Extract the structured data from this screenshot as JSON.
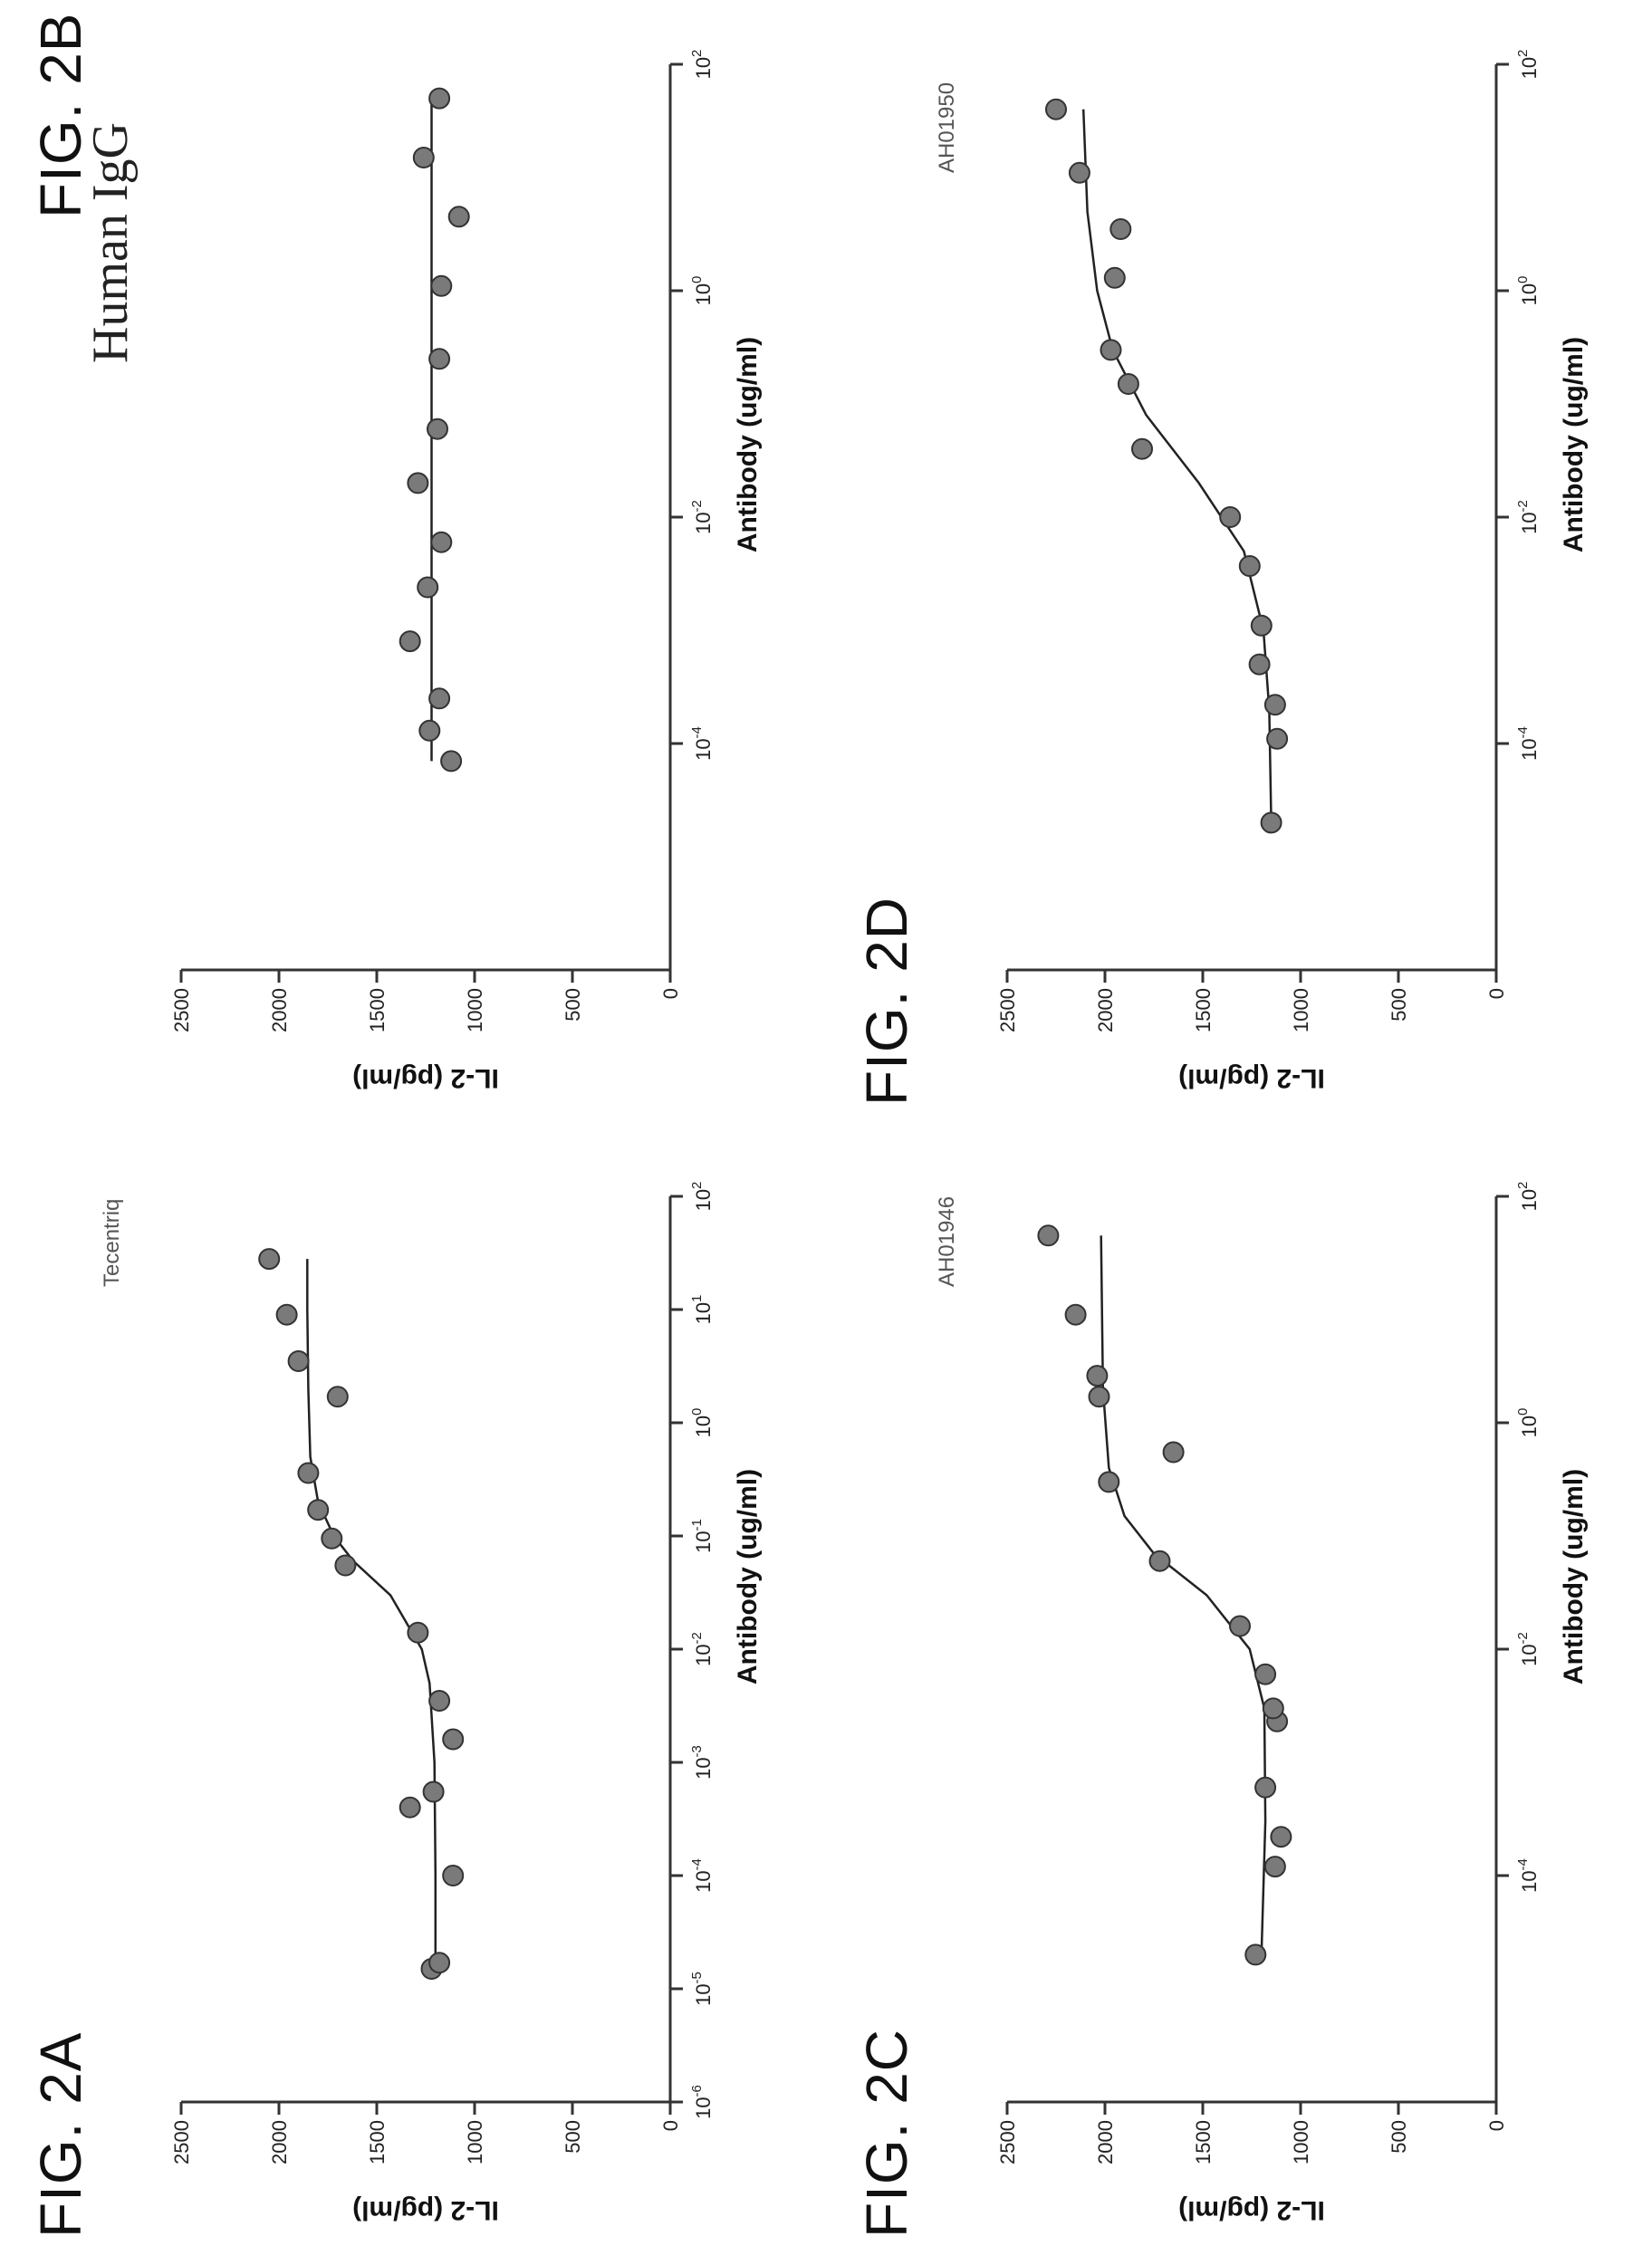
{
  "figures": [
    {
      "label": "FIG. 2A",
      "title": "Tecentriq",
      "title_style": "small"
    },
    {
      "label": "FIG. 2B",
      "title": "Human IgG",
      "title_style": "serif"
    },
    {
      "label": "FIG. 2C",
      "title": "AH01946",
      "title_style": "small"
    },
    {
      "label": "FIG. 2D",
      "title": "AH01950",
      "title_style": "small"
    }
  ],
  "chart_data": [
    {
      "type": "scatter",
      "title": "Tecentriq",
      "xlabel": "Antibody (ug/ml)",
      "ylabel": "IL-2 (pg/ml)",
      "x_scale": "log",
      "xlim": [
        1e-06,
        100
      ],
      "ylim": [
        0,
        2500
      ],
      "x_ticks": [
        1e-06,
        1e-05,
        0.0001,
        0.001,
        0.01,
        0.1,
        1,
        10,
        100
      ],
      "x_tick_labels": [
        "10-6",
        "10-5",
        "10-4",
        "10-3",
        "10-2",
        "10-1",
        "100",
        "101",
        "102"
      ],
      "y_ticks": [
        0,
        500,
        1000,
        1500,
        2000,
        2500
      ],
      "y_tick_labels": [
        "0",
        "500",
        "1000",
        "1500",
        "2000",
        "2500"
      ],
      "series": [
        {
          "points": [
            {
              "x": 1.5e-05,
              "y": 1220
            },
            {
              "x": 1.7e-05,
              "y": 1180
            },
            {
              "x": 0.0001,
              "y": 1110
            },
            {
              "x": 0.0004,
              "y": 1330
            },
            {
              "x": 0.00055,
              "y": 1210
            },
            {
              "x": 0.0016,
              "y": 1110
            },
            {
              "x": 0.0035,
              "y": 1180
            },
            {
              "x": 0.014,
              "y": 1290
            },
            {
              "x": 0.055,
              "y": 1660
            },
            {
              "x": 0.095,
              "y": 1730
            },
            {
              "x": 0.17,
              "y": 1800
            },
            {
              "x": 0.36,
              "y": 1850
            },
            {
              "x": 1.7,
              "y": 1700
            },
            {
              "x": 3.5,
              "y": 1900
            },
            {
              "x": 9,
              "y": 1960
            },
            {
              "x": 28,
              "y": 2050
            }
          ],
          "fit": [
            {
              "x": 1.5e-05,
              "y": 1200
            },
            {
              "x": 0.0001,
              "y": 1200
            },
            {
              "x": 0.001,
              "y": 1205
            },
            {
              "x": 0.005,
              "y": 1230
            },
            {
              "x": 0.01,
              "y": 1270
            },
            {
              "x": 0.03,
              "y": 1430
            },
            {
              "x": 0.06,
              "y": 1620
            },
            {
              "x": 0.1,
              "y": 1720
            },
            {
              "x": 0.2,
              "y": 1800
            },
            {
              "x": 0.5,
              "y": 1840
            },
            {
              "x": 2,
              "y": 1850
            },
            {
              "x": 10,
              "y": 1855
            },
            {
              "x": 28,
              "y": 1855
            }
          ]
        }
      ]
    },
    {
      "type": "scatter",
      "title": "Human IgG",
      "xlabel": "Antibody (ug/ml)",
      "ylabel": "IL-2 (pg/ml)",
      "x_scale": "log",
      "xlim": [
        1e-06,
        100
      ],
      "ylim": [
        0,
        2500
      ],
      "x_ticks": [
        0.0001,
        0.01,
        1,
        100
      ],
      "x_tick_labels": [
        "10-4",
        "10-2",
        "100",
        "102"
      ],
      "y_ticks": [
        0,
        500,
        1000,
        1500,
        2000,
        2500
      ],
      "y_tick_labels": [
        "0",
        "500",
        "1000",
        "1500",
        "2000",
        "2500"
      ],
      "series": [
        {
          "points": [
            {
              "x": 7e-05,
              "y": 1120
            },
            {
              "x": 0.00013,
              "y": 1230
            },
            {
              "x": 0.00025,
              "y": 1180
            },
            {
              "x": 0.0008,
              "y": 1330
            },
            {
              "x": 0.0024,
              "y": 1240
            },
            {
              "x": 0.006,
              "y": 1170
            },
            {
              "x": 0.02,
              "y": 1290
            },
            {
              "x": 0.06,
              "y": 1190
            },
            {
              "x": 0.25,
              "y": 1180
            },
            {
              "x": 1.1,
              "y": 1170
            },
            {
              "x": 4.5,
              "y": 1080
            },
            {
              "x": 15,
              "y": 1260
            },
            {
              "x": 50,
              "y": 1180
            }
          ],
          "fit": [
            {
              "x": 7e-05,
              "y": 1220
            },
            {
              "x": 50,
              "y": 1220
            }
          ]
        }
      ]
    },
    {
      "type": "scatter",
      "title": "AH01946",
      "xlabel": "Antibody (ug/ml)",
      "ylabel": "IL-2 (pg/ml)",
      "x_scale": "log",
      "xlim": [
        1e-06,
        100
      ],
      "ylim": [
        0,
        2500
      ],
      "x_ticks": [
        0.0001,
        0.01,
        1,
        100
      ],
      "x_tick_labels": [
        "10-4",
        "10-2",
        "100",
        "102"
      ],
      "y_ticks": [
        0,
        500,
        1000,
        1500,
        2000,
        2500
      ],
      "y_tick_labels": [
        "0",
        "500",
        "1000",
        "1500",
        "2000",
        "2500"
      ],
      "series": [
        {
          "points": [
            {
              "x": 2e-05,
              "y": 1230
            },
            {
              "x": 0.00012,
              "y": 1130
            },
            {
              "x": 0.00022,
              "y": 1100
            },
            {
              "x": 0.0006,
              "y": 1180
            },
            {
              "x": 0.0023,
              "y": 1120
            },
            {
              "x": 0.003,
              "y": 1140
            },
            {
              "x": 0.006,
              "y": 1180
            },
            {
              "x": 0.016,
              "y": 1310
            },
            {
              "x": 0.06,
              "y": 1720
            },
            {
              "x": 0.3,
              "y": 1980
            },
            {
              "x": 0.55,
              "y": 1650
            },
            {
              "x": 1.7,
              "y": 2030
            },
            {
              "x": 2.6,
              "y": 2040
            },
            {
              "x": 9,
              "y": 2150
            },
            {
              "x": 45,
              "y": 2290
            }
          ],
          "fit": [
            {
              "x": 2e-05,
              "y": 1200
            },
            {
              "x": 0.0003,
              "y": 1180
            },
            {
              "x": 0.003,
              "y": 1185
            },
            {
              "x": 0.01,
              "y": 1260
            },
            {
              "x": 0.03,
              "y": 1480
            },
            {
              "x": 0.07,
              "y": 1750
            },
            {
              "x": 0.15,
              "y": 1900
            },
            {
              "x": 0.4,
              "y": 1980
            },
            {
              "x": 2,
              "y": 2010
            },
            {
              "x": 45,
              "y": 2020
            }
          ]
        }
      ]
    },
    {
      "type": "scatter",
      "title": "AH01950",
      "xlabel": "Antibody (ug/ml)",
      "ylabel": "IL-2 (pg/ml)",
      "x_scale": "log",
      "xlim": [
        1e-06,
        100
      ],
      "ylim": [
        0,
        2500
      ],
      "x_ticks": [
        0.0001,
        0.01,
        1,
        100
      ],
      "x_tick_labels": [
        "10-4",
        "10-2",
        "100",
        "102"
      ],
      "y_ticks": [
        0,
        500,
        1000,
        1500,
        2000,
        2500
      ],
      "y_tick_labels": [
        "0",
        "500",
        "1000",
        "1500",
        "2000",
        "2500"
      ],
      "series": [
        {
          "points": [
            {
              "x": 2e-05,
              "y": 1150
            },
            {
              "x": 0.00011,
              "y": 1120
            },
            {
              "x": 0.00022,
              "y": 1130
            },
            {
              "x": 0.0005,
              "y": 1210
            },
            {
              "x": 0.0011,
              "y": 1200
            },
            {
              "x": 0.0037,
              "y": 1260
            },
            {
              "x": 0.01,
              "y": 1360
            },
            {
              "x": 0.04,
              "y": 1810
            },
            {
              "x": 0.15,
              "y": 1880
            },
            {
              "x": 0.3,
              "y": 1970
            },
            {
              "x": 1.3,
              "y": 1950
            },
            {
              "x": 3.5,
              "y": 1920
            },
            {
              "x": 11,
              "y": 2130
            },
            {
              "x": 40,
              "y": 2250
            }
          ],
          "fit": [
            {
              "x": 2e-05,
              "y": 1150
            },
            {
              "x": 0.0002,
              "y": 1160
            },
            {
              "x": 0.001,
              "y": 1190
            },
            {
              "x": 0.005,
              "y": 1290
            },
            {
              "x": 0.02,
              "y": 1520
            },
            {
              "x": 0.08,
              "y": 1790
            },
            {
              "x": 0.3,
              "y": 1960
            },
            {
              "x": 1,
              "y": 2040
            },
            {
              "x": 5,
              "y": 2090
            },
            {
              "x": 40,
              "y": 2110
            }
          ]
        }
      ]
    }
  ]
}
